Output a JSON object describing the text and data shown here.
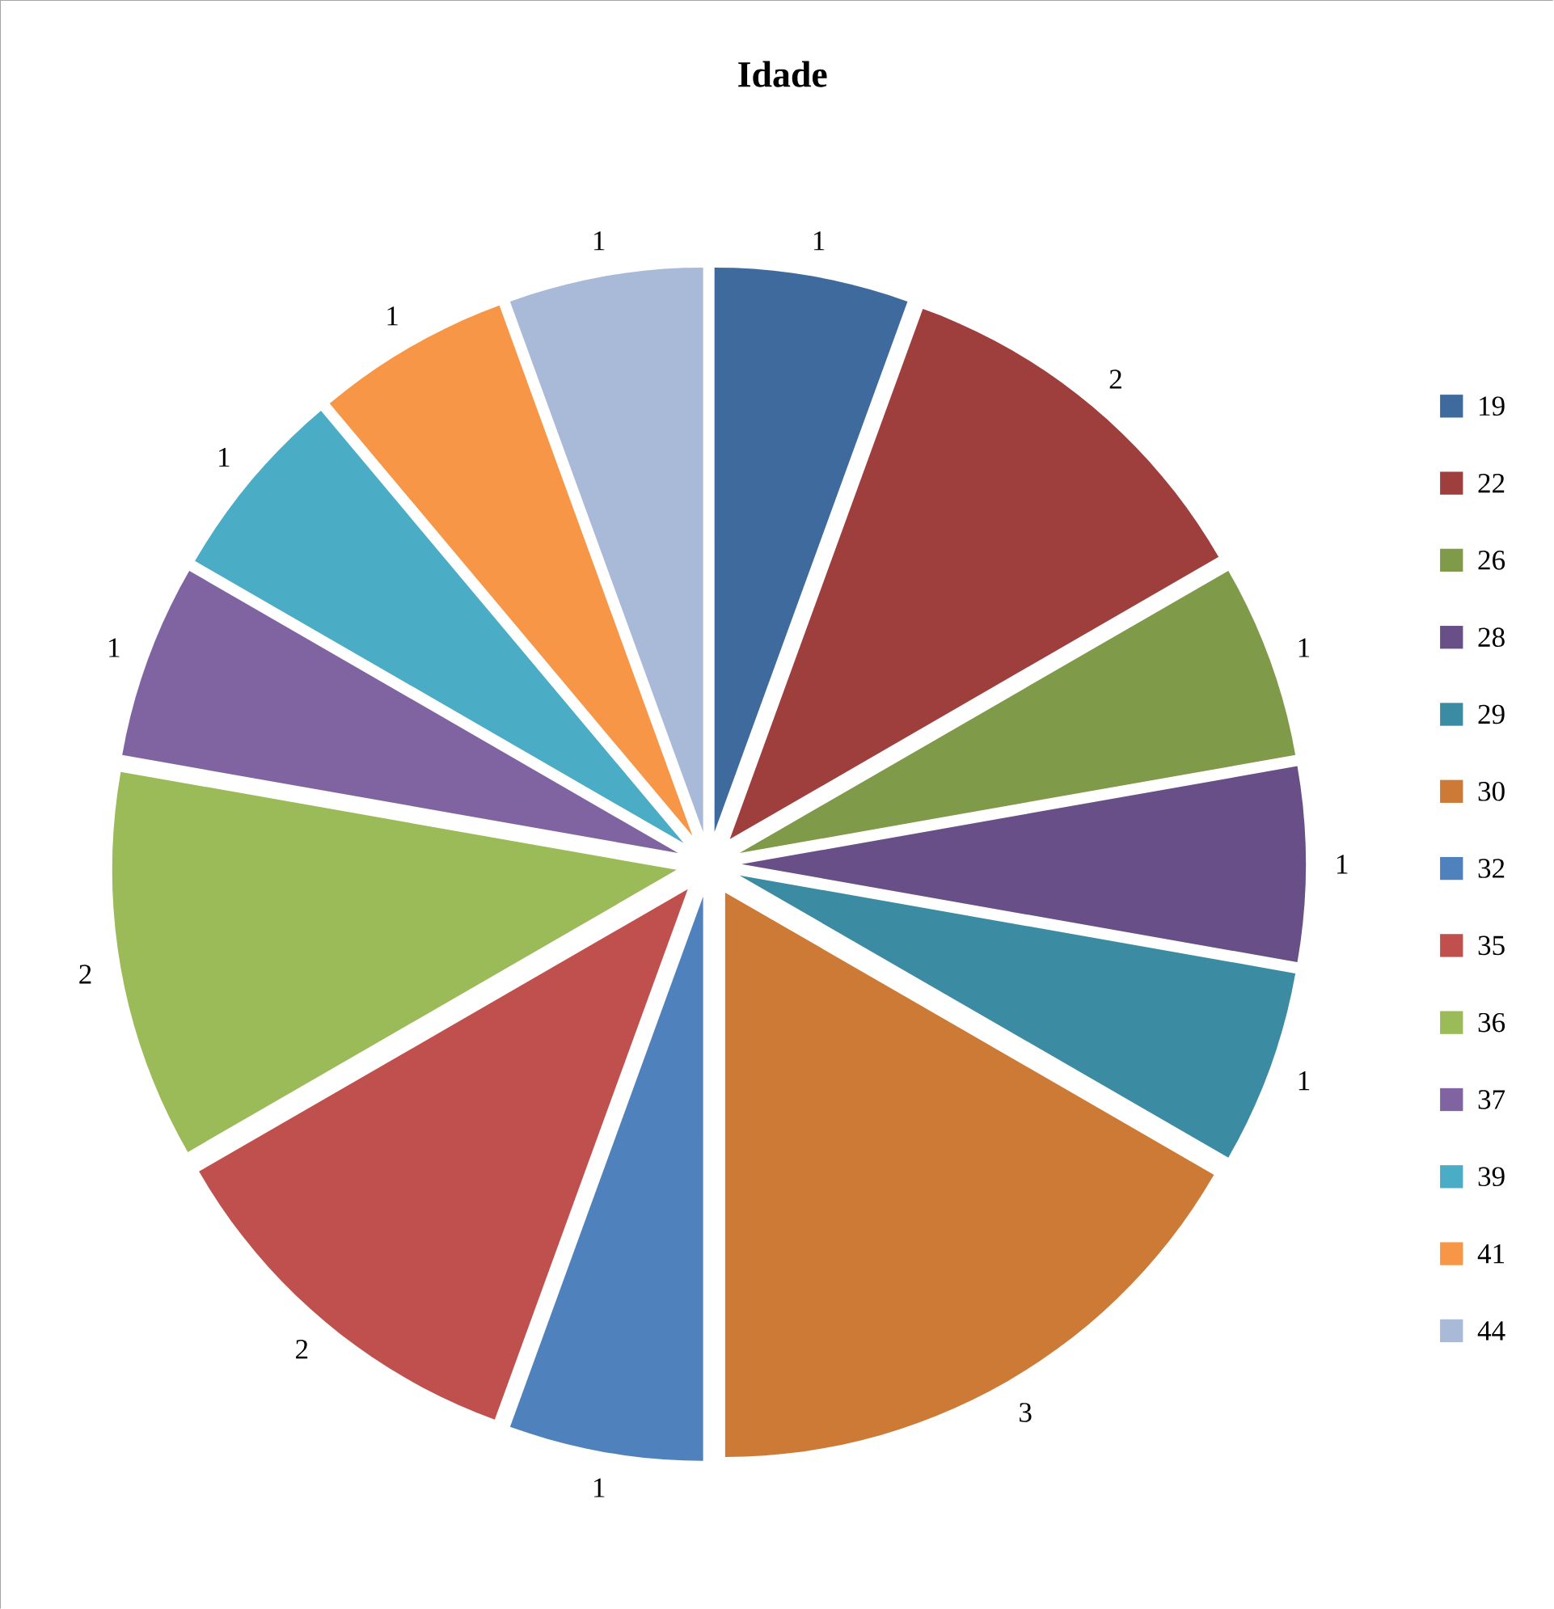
{
  "chart_data": {
    "type": "pie",
    "title": "Idade",
    "categories": [
      "19",
      "22",
      "26",
      "28",
      "29",
      "30",
      "32",
      "35",
      "36",
      "37",
      "39",
      "41",
      "44"
    ],
    "values": [
      1,
      2,
      1,
      1,
      1,
      3,
      1,
      2,
      2,
      1,
      1,
      1,
      1
    ],
    "colors": [
      "#3f6a9e",
      "#9e3f3e",
      "#7f9a48",
      "#694f87",
      "#3b8ba3",
      "#cc7a36",
      "#4f81bd",
      "#c0504d",
      "#9bbb59",
      "#8064a2",
      "#4bacc6",
      "#f79646",
      "#a9b9d8"
    ],
    "data_labels": true,
    "legend": "right"
  }
}
